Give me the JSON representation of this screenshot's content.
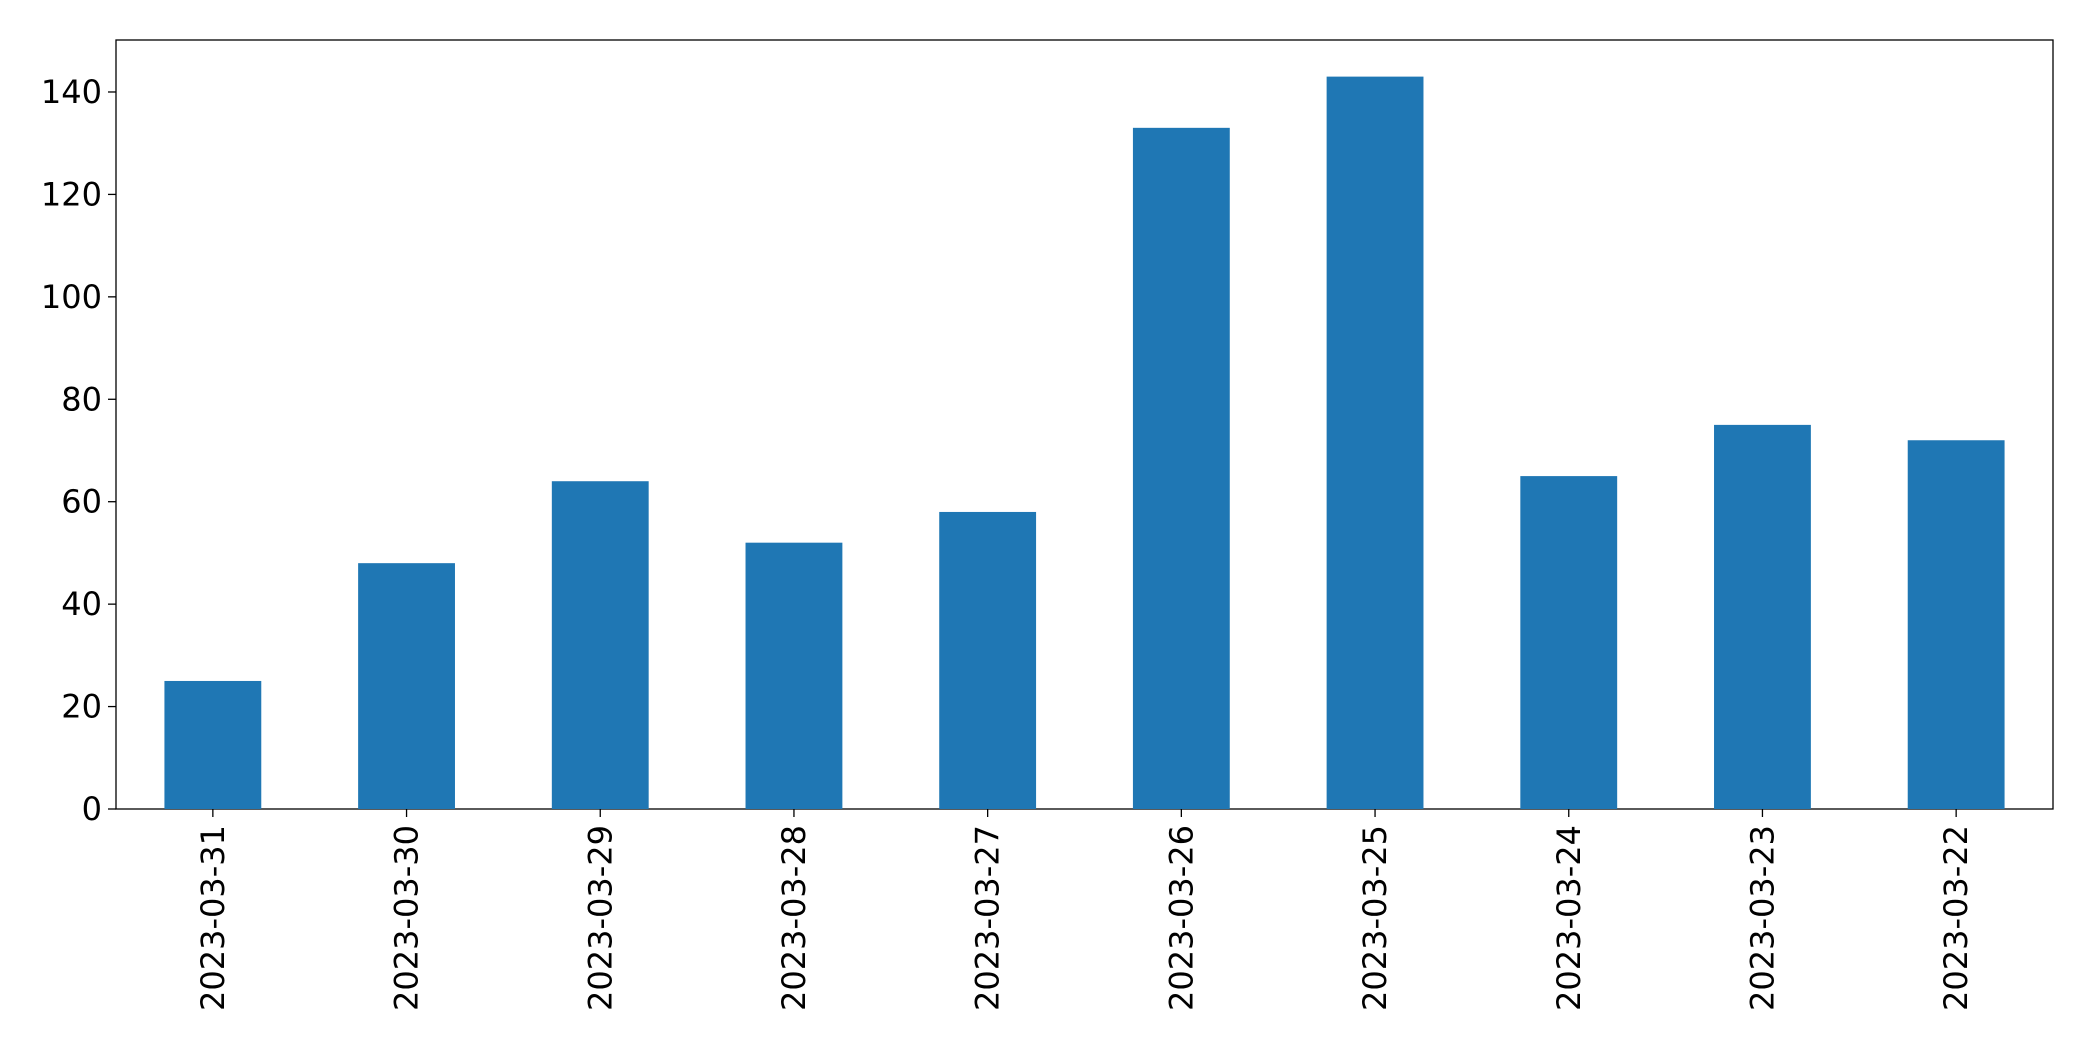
{
  "chart_data": {
    "type": "bar",
    "categories": [
      "2023-03-31",
      "2023-03-30",
      "2023-03-29",
      "2023-03-28",
      "2023-03-27",
      "2023-03-26",
      "2023-03-25",
      "2023-03-24",
      "2023-03-23",
      "2023-03-22"
    ],
    "values": [
      25,
      48,
      64,
      52,
      58,
      133,
      143,
      65,
      75,
      72
    ],
    "color": "#1f77b4",
    "ylim": [
      0,
      150.15
    ],
    "yticks": [
      0,
      20,
      40,
      60,
      80,
      100,
      120,
      140
    ],
    "grid": false
  }
}
